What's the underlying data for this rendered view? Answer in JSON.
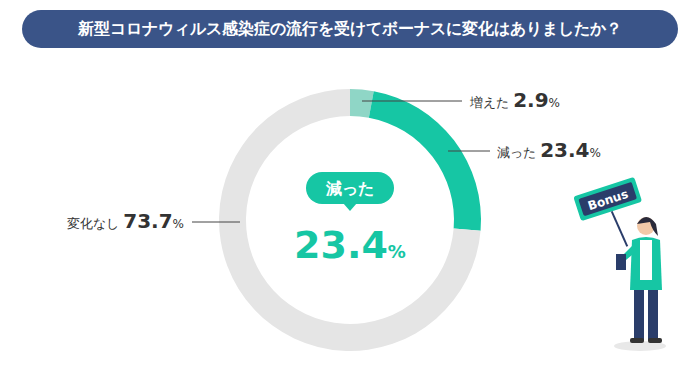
{
  "chart_data": {
    "type": "pie",
    "title": "新型コロナウィルス感染症の流行を受けてボーナスに変化はありましたか？",
    "categories": [
      "増えた",
      "減った",
      "変化なし"
    ],
    "values": [
      2.9,
      23.4,
      73.7
    ],
    "value_labels": [
      "2.9%",
      "23.4%",
      "73.7%"
    ],
    "colors": [
      "#8fd6c6",
      "#16c6a4",
      "#e5e5e5"
    ],
    "data_labels": true,
    "annotations": [
      "減った",
      "23.4%",
      "Bonus"
    ]
  }
}
